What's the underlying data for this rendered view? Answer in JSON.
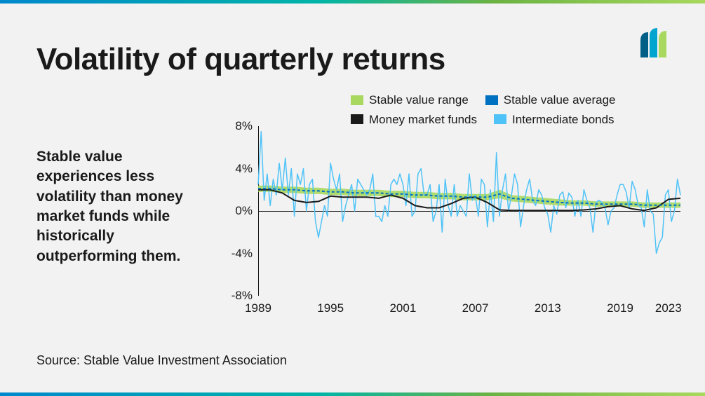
{
  "title": "Volatility of quarterly returns",
  "subtitle": "Stable value experiences less volatility than money market funds while historically outperforming them.",
  "source": "Source: Stable Value Investment Association",
  "gradient_colors": [
    "#0088cc",
    "#00b4a8",
    "#6bb344",
    "#a8d85e"
  ],
  "logo": {
    "colors": [
      "#005f87",
      "#00a5cf",
      "#a8d85e"
    ]
  },
  "legend": {
    "items": [
      {
        "key": "sv_range",
        "label": "Stable value range",
        "color": "#a8d85e",
        "type": "box"
      },
      {
        "key": "sv_avg",
        "label": "Stable value average",
        "color": "#0070c0",
        "type": "box"
      },
      {
        "key": "mmf",
        "label": "Money market funds",
        "color": "#1a1a1a",
        "type": "box"
      },
      {
        "key": "ibonds",
        "label": "Intermediate bonds",
        "color": "#4fc3f7",
        "type": "box"
      }
    ]
  },
  "chart": {
    "type": "line",
    "background": "#f2f2f2",
    "x_range": [
      1989,
      2024
    ],
    "y_range": [
      -8,
      8
    ],
    "y_ticks": [
      -8,
      -4,
      0,
      4,
      8
    ],
    "y_tick_labels": [
      "-8%",
      "-4%",
      "0%",
      "4%",
      "8%"
    ],
    "x_ticks": [
      1989,
      1995,
      2001,
      2007,
      2013,
      2019,
      2023
    ],
    "x_tick_labels": [
      "1989",
      "1995",
      "2001",
      "2007",
      "2013",
      "2019",
      "2023"
    ],
    "series": {
      "sv_range": {
        "type": "band",
        "color": "#a8d85e",
        "opacity": 0.9,
        "upper": [
          2.4,
          2.4,
          2.3,
          2.3,
          2.2,
          2.2,
          2.1,
          2.1,
          2.0,
          2.0,
          2.0,
          1.9,
          1.9,
          1.8,
          1.8,
          1.7,
          1.7,
          1.6,
          1.6,
          1.6,
          2.0,
          1.5,
          1.4,
          1.3,
          1.2,
          1.1,
          1.0,
          1.0,
          0.9,
          0.9,
          0.9,
          0.9,
          0.8,
          0.8,
          0.8,
          0.8
        ],
        "lower": [
          1.8,
          1.8,
          1.7,
          1.7,
          1.6,
          1.6,
          1.5,
          1.5,
          1.4,
          1.4,
          1.4,
          1.3,
          1.3,
          1.2,
          1.2,
          1.1,
          1.1,
          1.0,
          1.0,
          1.0,
          1.2,
          0.9,
          0.8,
          0.7,
          0.6,
          0.5,
          0.5,
          0.5,
          0.4,
          0.4,
          0.4,
          0.4,
          0.3,
          0.3,
          0.3,
          0.3
        ],
        "x": [
          1989,
          1990,
          1991,
          1992,
          1993,
          1994,
          1995,
          1996,
          1997,
          1998,
          1999,
          2000,
          2001,
          2002,
          2003,
          2004,
          2005,
          2006,
          2007,
          2008,
          2009,
          2010,
          2011,
          2012,
          2013,
          2014,
          2015,
          2016,
          2017,
          2018,
          2019,
          2020,
          2021,
          2022,
          2023,
          2024
        ]
      },
      "sv_avg": {
        "type": "line",
        "color": "#0070c0",
        "width": 2,
        "dash": "4,3",
        "x": [
          1989,
          1990,
          1991,
          1992,
          1993,
          1994,
          1995,
          1996,
          1997,
          1998,
          1999,
          2000,
          2001,
          2002,
          2003,
          2004,
          2005,
          2006,
          2007,
          2008,
          2009,
          2010,
          2011,
          2012,
          2013,
          2014,
          2015,
          2016,
          2017,
          2018,
          2019,
          2020,
          2021,
          2022,
          2023,
          2024
        ],
        "y": [
          2.1,
          2.1,
          2.0,
          2.0,
          1.9,
          1.9,
          1.8,
          1.8,
          1.7,
          1.7,
          1.7,
          1.6,
          1.6,
          1.5,
          1.5,
          1.4,
          1.4,
          1.3,
          1.3,
          1.3,
          1.6,
          1.2,
          1.1,
          1.0,
          0.9,
          0.8,
          0.75,
          0.75,
          0.65,
          0.65,
          0.65,
          0.65,
          0.55,
          0.55,
          0.55,
          0.55
        ]
      },
      "mmf": {
        "type": "line",
        "color": "#1a1a1a",
        "width": 2,
        "x": [
          1989,
          1990,
          1991,
          1992,
          1993,
          1994,
          1995,
          1996,
          1997,
          1998,
          1999,
          2000,
          2001,
          2002,
          2003,
          2004,
          2005,
          2006,
          2007,
          2008,
          2009,
          2010,
          2011,
          2012,
          2013,
          2014,
          2015,
          2016,
          2017,
          2018,
          2019,
          2020,
          2021,
          2022,
          2023,
          2024
        ],
        "y": [
          2.0,
          2.0,
          1.7,
          1.0,
          0.8,
          0.9,
          1.4,
          1.3,
          1.3,
          1.3,
          1.2,
          1.5,
          1.2,
          0.5,
          0.3,
          0.3,
          0.7,
          1.2,
          1.3,
          0.8,
          0.1,
          0.05,
          0.05,
          0.05,
          0.05,
          0.05,
          0.05,
          0.1,
          0.2,
          0.4,
          0.5,
          0.2,
          0.05,
          0.3,
          1.1,
          1.2
        ]
      },
      "ibonds": {
        "type": "line",
        "color": "#4fc3f7",
        "width": 1.5,
        "x": [
          1989,
          1989.25,
          1989.5,
          1989.75,
          1990,
          1990.25,
          1990.5,
          1990.75,
          1991,
          1991.25,
          1991.5,
          1991.75,
          1992,
          1992.25,
          1992.5,
          1992.75,
          1993,
          1993.25,
          1993.5,
          1993.75,
          1994,
          1994.25,
          1994.5,
          1994.75,
          1995,
          1995.25,
          1995.5,
          1995.75,
          1996,
          1996.25,
          1996.5,
          1996.75,
          1997,
          1997.25,
          1997.5,
          1997.75,
          1998,
          1998.25,
          1998.5,
          1998.75,
          1999,
          1999.25,
          1999.5,
          1999.75,
          2000,
          2000.25,
          2000.5,
          2000.75,
          2001,
          2001.25,
          2001.5,
          2001.75,
          2002,
          2002.25,
          2002.5,
          2002.75,
          2003,
          2003.25,
          2003.5,
          2003.75,
          2004,
          2004.25,
          2004.5,
          2004.75,
          2005,
          2005.25,
          2005.5,
          2005.75,
          2006,
          2006.25,
          2006.5,
          2006.75,
          2007,
          2007.25,
          2007.5,
          2007.75,
          2008,
          2008.25,
          2008.5,
          2008.75,
          2009,
          2009.25,
          2009.5,
          2009.75,
          2010,
          2010.25,
          2010.5,
          2010.75,
          2011,
          2011.25,
          2011.5,
          2011.75,
          2012,
          2012.25,
          2012.5,
          2012.75,
          2013,
          2013.25,
          2013.5,
          2013.75,
          2014,
          2014.25,
          2014.5,
          2014.75,
          2015,
          2015.25,
          2015.5,
          2015.75,
          2016,
          2016.25,
          2016.5,
          2016.75,
          2017,
          2017.25,
          2017.5,
          2017.75,
          2018,
          2018.25,
          2018.5,
          2018.75,
          2019,
          2019.25,
          2019.5,
          2019.75,
          2020,
          2020.25,
          2020.5,
          2020.75,
          2021,
          2021.25,
          2021.5,
          2021.75,
          2022,
          2022.25,
          2022.5,
          2022.75,
          2023,
          2023.25,
          2023.5,
          2023.75,
          2024
        ],
        "y": [
          2.5,
          7.5,
          1.0,
          3.5,
          0.5,
          3.0,
          1.5,
          4.5,
          2.0,
          5.0,
          1.5,
          4.0,
          -0.5,
          3.5,
          2.5,
          4.0,
          0.0,
          2.5,
          3.0,
          -1.0,
          -2.5,
          -1.0,
          0.5,
          -0.5,
          4.5,
          3.0,
          2.0,
          3.5,
          -1.0,
          0.5,
          1.5,
          2.5,
          0.0,
          3.0,
          2.5,
          2.0,
          1.5,
          2.0,
          3.5,
          -0.5,
          -0.5,
          -1.0,
          0.5,
          -0.5,
          2.5,
          3.0,
          2.5,
          3.5,
          2.5,
          0.5,
          3.5,
          -0.5,
          0.0,
          3.5,
          4.0,
          1.5,
          1.5,
          2.5,
          -1.0,
          0.0,
          2.5,
          -2.0,
          3.0,
          0.5,
          -0.5,
          2.5,
          -0.5,
          0.5,
          0.0,
          -0.5,
          3.5,
          1.0,
          1.5,
          -0.5,
          3.0,
          2.5,
          -1.5,
          2.0,
          -1.0,
          5.5,
          -0.5,
          2.0,
          3.5,
          0.0,
          1.5,
          3.5,
          2.5,
          -1.5,
          0.5,
          2.0,
          3.0,
          1.0,
          0.5,
          2.0,
          1.5,
          0.3,
          -0.3,
          -2.0,
          0.5,
          -0.3,
          1.5,
          1.8,
          0.3,
          1.7,
          1.3,
          -0.5,
          1.0,
          -0.5,
          2.0,
          1.0,
          0.3,
          -2.0,
          0.8,
          1.0,
          0.8,
          0.3,
          -1.3,
          0.0,
          0.3,
          1.5,
          2.5,
          2.5,
          1.8,
          0.3,
          2.8,
          2.0,
          0.5,
          0.3,
          -1.5,
          2.0,
          0.0,
          -0.3,
          -4.0,
          -3.0,
          -2.5,
          1.5,
          2.0,
          -1.0,
          0.0,
          3.0,
          1.5
        ]
      }
    }
  }
}
